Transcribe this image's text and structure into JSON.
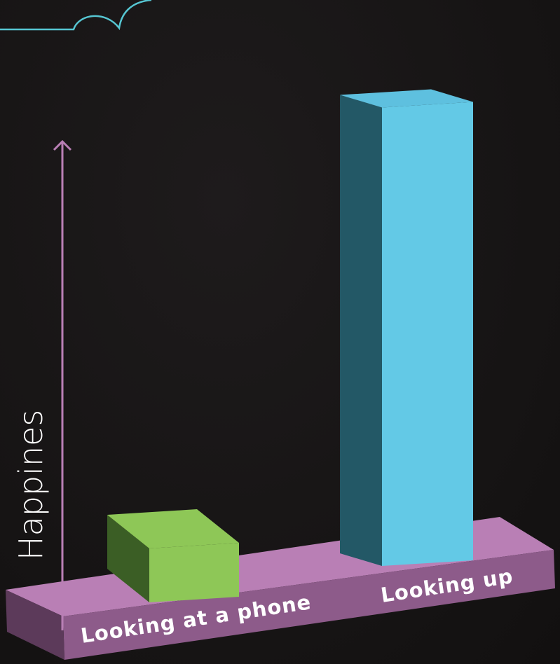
{
  "chart_data": {
    "type": "bar",
    "style": "3d",
    "categories": [
      "Looking at a phone",
      "Looking up"
    ],
    "values": [
      10,
      85
    ],
    "ylabel": "Happines",
    "ylim": [
      0,
      100
    ],
    "grid": false,
    "legend": "none"
  },
  "colors": {
    "background": "#171415",
    "base_top": "#b97fb5",
    "base_front": "#8d5b8a",
    "axis_line": "#b97fb5",
    "bar_phone_top": "#8ec757",
    "bar_phone_front": "#8ec757",
    "bar_phone_side": "#3b5e25",
    "bar_up_top": "#5ec0df",
    "bar_up_front": "#63c9e6",
    "bar_up_side": "#235866",
    "decor_stroke": "#56c6d2"
  }
}
